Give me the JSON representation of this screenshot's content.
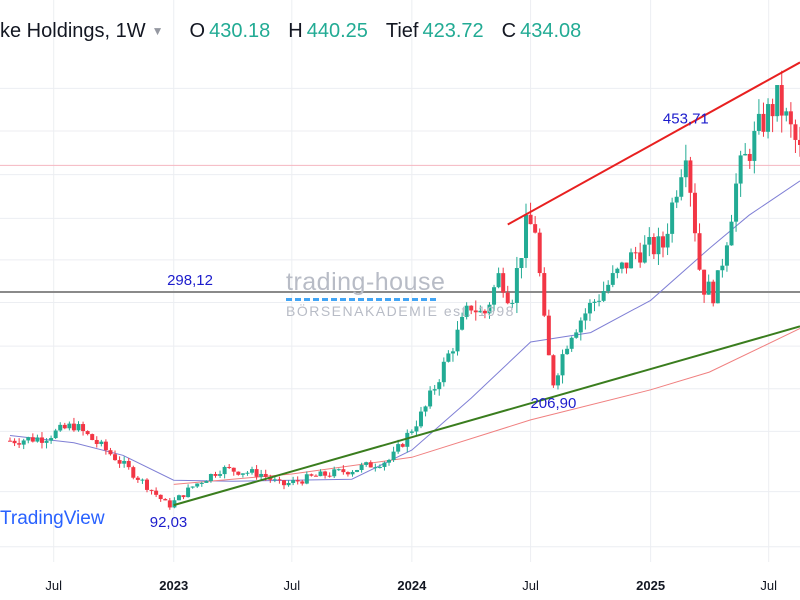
{
  "header": {
    "symbol": "ke Holdings, 1W",
    "open_label": "O",
    "open_value": "430.18",
    "high_label": "H",
    "high_value": "440.25",
    "low_label": "Tief",
    "low_value": "423.72",
    "close_label": "C",
    "close_value": "434.08"
  },
  "watermark": {
    "title": "trading-house",
    "subtitle": "BÖRSENAKADEMIE est. 1998"
  },
  "logo": {
    "text": "TradingView"
  },
  "colors": {
    "up": "#22ab94",
    "down": "#f23645",
    "grid": "#eceef2",
    "resistance": "#e82020",
    "support": "#3a7d1e",
    "horizontal": "#8a8a8a",
    "ma_short": "#7f7fd5",
    "ma_long": "#f08080",
    "annotation": "#1c1ccc",
    "axis_text": "#131722",
    "hline_pink": "#f5b6c0"
  },
  "chart_data": {
    "type": "candlestick",
    "interval": "1W",
    "x_range": [
      "2022-04-25",
      "2025-08-18"
    ],
    "y_range": [
      20,
      530
    ],
    "x_ticks": [
      {
        "date": "2022-07-01",
        "label": "Jul",
        "bold": false
      },
      {
        "date": "2023-01-01",
        "label": "2023",
        "bold": true
      },
      {
        "date": "2023-07-01",
        "label": "Jul",
        "bold": false
      },
      {
        "date": "2024-01-01",
        "label": "2024",
        "bold": true
      },
      {
        "date": "2024-07-01",
        "label": "Jul",
        "bold": false
      },
      {
        "date": "2025-01-01",
        "label": "2025",
        "bold": true
      },
      {
        "date": "2025-07-01",
        "label": "Jul",
        "bold": false
      }
    ],
    "y_grid": [
      53,
      106,
      164,
      205,
      246,
      288,
      329,
      369,
      411,
      453,
      494
    ],
    "grid": true,
    "annotations": [
      {
        "text": "92,03",
        "date": "2022-12-24",
        "value": 92.03,
        "anchor": "below"
      },
      {
        "text": "206,90",
        "date": "2024-08-05",
        "value": 206.9,
        "anchor": "below"
      },
      {
        "text": "453,71",
        "date": "2025-02-24",
        "value": 453.71,
        "anchor": "above"
      },
      {
        "text": "298,12",
        "date": "2023-01-26",
        "value": 298.12,
        "anchor": "above"
      }
    ],
    "horizontal_levels": [
      {
        "value": 298.12,
        "color": "#8a8a8a",
        "width": 2
      },
      {
        "value": 420,
        "color": "#f5b6c0",
        "width": 1
      }
    ],
    "trendlines": [
      {
        "name": "resistance",
        "from": {
          "date": "2024-05-27",
          "value": 363
        },
        "to": {
          "date": "2025-08-18",
          "value": 519
        },
        "color": "#e82020"
      },
      {
        "name": "support",
        "from": {
          "date": "2023-01-01",
          "value": 93
        },
        "to": {
          "date": "2025-08-18",
          "value": 265
        },
        "color": "#3a7d1e"
      }
    ],
    "moving_averages": [
      {
        "name": "MA short",
        "color": "#7f7fd5",
        "points": [
          [
            "2022-04-25",
            160
          ],
          [
            "2022-08-01",
            153
          ],
          [
            "2022-10-15",
            141
          ],
          [
            "2023-01-01",
            117
          ],
          [
            "2023-04-01",
            116
          ],
          [
            "2023-07-01",
            117
          ],
          [
            "2023-10-01",
            118
          ],
          [
            "2024-01-01",
            146
          ],
          [
            "2024-04-01",
            196
          ],
          [
            "2024-07-01",
            250
          ],
          [
            "2024-10-01",
            259
          ],
          [
            "2025-01-01",
            290
          ],
          [
            "2025-04-01",
            340
          ],
          [
            "2025-06-01",
            372
          ],
          [
            "2025-08-18",
            405
          ]
        ]
      },
      {
        "name": "MA long",
        "color": "#f08080",
        "points": [
          [
            "2023-01-01",
            113
          ],
          [
            "2023-07-01",
            123
          ],
          [
            "2024-01-01",
            139
          ],
          [
            "2024-07-01",
            175
          ],
          [
            "2025-01-01",
            204
          ],
          [
            "2025-04-01",
            221
          ],
          [
            "2025-08-18",
            263
          ]
        ]
      }
    ],
    "anchors": [
      [
        "2022-04-25",
        155
      ],
      [
        "2022-06-15",
        158
      ],
      [
        "2022-08-01",
        170
      ],
      [
        "2022-10-01",
        140
      ],
      [
        "2022-11-10",
        118
      ],
      [
        "2022-12-24",
        92
      ],
      [
        "2023-02-01",
        112
      ],
      [
        "2023-03-15",
        128
      ],
      [
        "2023-05-15",
        123
      ],
      [
        "2023-06-15",
        112
      ],
      [
        "2023-08-01",
        120
      ],
      [
        "2023-10-01",
        127
      ],
      [
        "2023-11-30",
        137
      ],
      [
        "2024-01-20",
        184
      ],
      [
        "2024-02-28",
        240
      ],
      [
        "2024-03-31",
        286
      ],
      [
        "2024-04-20",
        275
      ],
      [
        "2024-05-15",
        316
      ],
      [
        "2024-06-01",
        290
      ],
      [
        "2024-06-25",
        363
      ],
      [
        "2024-07-08",
        360
      ],
      [
        "2024-07-25",
        247
      ],
      [
        "2024-08-05",
        212
      ],
      [
        "2024-08-30",
        258
      ],
      [
        "2024-10-01",
        285
      ],
      [
        "2024-11-01",
        308
      ],
      [
        "2024-12-10",
        337
      ],
      [
        "2025-01-20",
        343
      ],
      [
        "2025-02-24",
        440
      ],
      [
        "2025-03-20",
        305
      ],
      [
        "2025-04-10",
        296
      ],
      [
        "2025-04-25",
        342
      ],
      [
        "2025-05-15",
        411
      ],
      [
        "2025-06-20",
        460
      ],
      [
        "2025-07-15",
        483
      ],
      [
        "2025-08-18",
        432
      ]
    ]
  }
}
